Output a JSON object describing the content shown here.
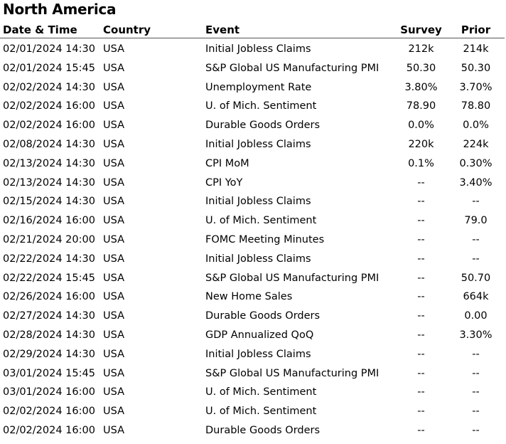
{
  "title": "North America",
  "headers": {
    "date": "Date & Time",
    "country": "Country",
    "event": "Event",
    "survey": "Survey",
    "prior": "Prior"
  },
  "rows": [
    {
      "date": "02/01/2024 14:30",
      "country": "USA",
      "event": "Initial Jobless Claims",
      "survey": "212k",
      "prior": "214k"
    },
    {
      "date": "02/01/2024 15:45",
      "country": "USA",
      "event": "S&P Global US Manufacturing PMI",
      "survey": "50.30",
      "prior": "50.30"
    },
    {
      "date": "02/02/2024 14:30",
      "country": "USA",
      "event": "Unemployment Rate",
      "survey": "3.80%",
      "prior": "3.70%"
    },
    {
      "date": "02/02/2024 16:00",
      "country": "USA",
      "event": "U. of Mich. Sentiment",
      "survey": "78.90",
      "prior": "78.80"
    },
    {
      "date": "02/02/2024 16:00",
      "country": "USA",
      "event": "Durable Goods Orders",
      "survey": "0.0%",
      "prior": "0.0%"
    },
    {
      "date": "02/08/2024 14:30",
      "country": "USA",
      "event": "Initial Jobless Claims",
      "survey": "220k",
      "prior": "224k"
    },
    {
      "date": "02/13/2024 14:30",
      "country": "USA",
      "event": "CPI MoM",
      "survey": "0.1%",
      "prior": "0.30%"
    },
    {
      "date": "02/13/2024 14:30",
      "country": "USA",
      "event": "CPI YoY",
      "survey": "--",
      "prior": "3.40%"
    },
    {
      "date": "02/15/2024 14:30",
      "country": "USA",
      "event": "Initial Jobless Claims",
      "survey": "--",
      "prior": "--"
    },
    {
      "date": "02/16/2024 16:00",
      "country": "USA",
      "event": "U. of Mich. Sentiment",
      "survey": "--",
      "prior": "79.0"
    },
    {
      "date": "02/21/2024 20:00",
      "country": "USA",
      "event": "FOMC Meeting Minutes",
      "survey": "--",
      "prior": "--"
    },
    {
      "date": "02/22/2024 14:30",
      "country": "USA",
      "event": "Initial Jobless Claims",
      "survey": "--",
      "prior": "--"
    },
    {
      "date": "02/22/2024 15:45",
      "country": "USA",
      "event": "S&P Global US Manufacturing PMI",
      "survey": "--",
      "prior": "50.70"
    },
    {
      "date": "02/26/2024 16:00",
      "country": "USA",
      "event": "New Home Sales",
      "survey": "--",
      "prior": "664k"
    },
    {
      "date": "02/27/2024 14:30",
      "country": "USA",
      "event": "Durable Goods Orders",
      "survey": "--",
      "prior": "0.00"
    },
    {
      "date": "02/28/2024 14:30",
      "country": "USA",
      "event": "GDP Annualized QoQ",
      "survey": "--",
      "prior": "3.30%"
    },
    {
      "date": "02/29/2024 14:30",
      "country": "USA",
      "event": "Initial Jobless Claims",
      "survey": "--",
      "prior": "--"
    },
    {
      "date": "03/01/2024 15:45",
      "country": "USA",
      "event": "S&P Global US Manufacturing PMI",
      "survey": "--",
      "prior": "--"
    },
    {
      "date": "03/01/2024 16:00",
      "country": "USA",
      "event": "U. of Mich. Sentiment",
      "survey": "--",
      "prior": "--"
    },
    {
      "date": "02/02/2024 16:00",
      "country": "USA",
      "event": "U. of Mich. Sentiment",
      "survey": "--",
      "prior": "--"
    },
    {
      "date": "02/02/2024 16:00",
      "country": "USA",
      "event": "Durable Goods Orders",
      "survey": "--",
      "prior": "--"
    }
  ]
}
